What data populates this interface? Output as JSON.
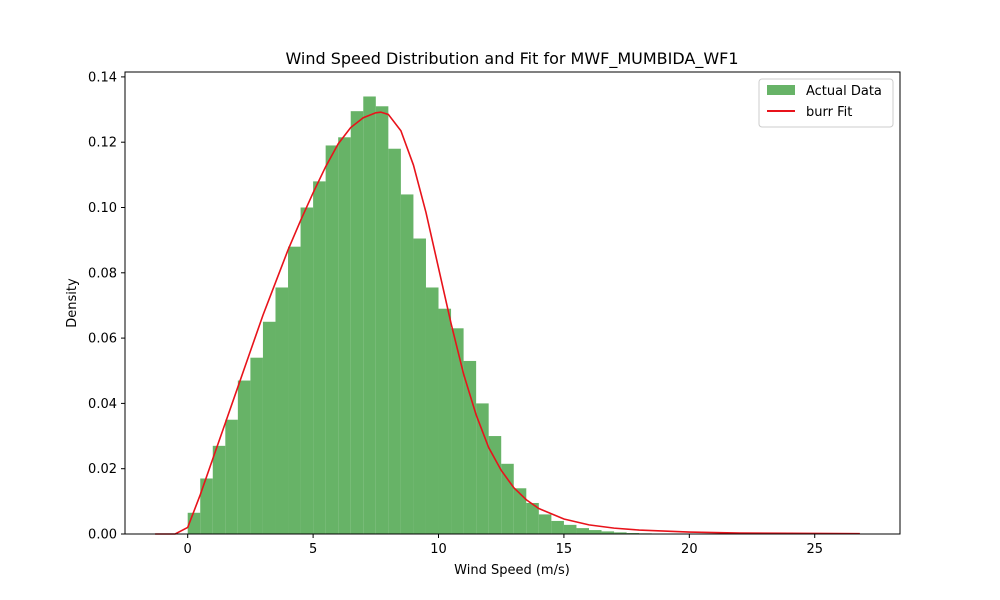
{
  "chart_data": {
    "type": "histogram",
    "title": "Wind Speed Distribution and Fit for MWF_MUMBIDA_WF1",
    "xlabel": "Wind Speed (m/s)",
    "ylabel": "Density",
    "xlim": [
      -2.5,
      28.4
    ],
    "ylim": [
      0,
      0.1415
    ],
    "xticks": [
      0,
      5,
      10,
      15,
      20,
      25
    ],
    "yticks": [
      0.0,
      0.02,
      0.04,
      0.06,
      0.08,
      0.1,
      0.12,
      0.14
    ],
    "xtick_labels": [
      "0",
      "5",
      "10",
      "15",
      "20",
      "25"
    ],
    "ytick_labels": [
      "0.00",
      "0.02",
      "0.04",
      "0.06",
      "0.08",
      "0.10",
      "0.12",
      "0.14"
    ],
    "legend_position": "top-right",
    "grid": false,
    "histogram": {
      "name": "Actual Data",
      "color": "#4ca64c",
      "opacity": 0.85,
      "bin_edges": [
        0.0,
        0.5,
        1.0,
        1.5,
        2.0,
        2.5,
        3.0,
        3.5,
        4.0,
        4.5,
        5.0,
        5.5,
        6.0,
        6.5,
        7.0,
        7.5,
        8.0,
        8.5,
        9.0,
        9.5,
        10.0,
        10.5,
        11.0,
        11.5,
        12.0,
        12.5,
        13.0,
        13.5,
        14.0,
        14.5,
        15.0,
        15.5,
        16.0,
        16.5,
        17.0,
        17.5,
        18.0,
        18.5,
        19.0,
        19.5,
        20.0
      ],
      "densities": [
        0.0065,
        0.017,
        0.027,
        0.035,
        0.047,
        0.054,
        0.065,
        0.0755,
        0.088,
        0.1,
        0.108,
        0.119,
        0.1215,
        0.1295,
        0.134,
        0.131,
        0.118,
        0.104,
        0.0905,
        0.0755,
        0.069,
        0.063,
        0.053,
        0.04,
        0.03,
        0.0215,
        0.014,
        0.0095,
        0.006,
        0.004,
        0.0028,
        0.0018,
        0.0012,
        0.0008,
        0.0005,
        0.0003,
        0.0002,
        0.00015,
        0.0001,
        5e-05
      ]
    },
    "fit_curve": {
      "name": "burr Fit",
      "color": "#e8131b",
      "x": [
        -1.3,
        -0.5,
        0.0,
        0.5,
        1.0,
        1.5,
        2.0,
        2.5,
        3.0,
        3.5,
        4.0,
        4.5,
        5.0,
        5.5,
        6.0,
        6.5,
        7.0,
        7.5,
        7.7,
        8.0,
        8.5,
        9.0,
        9.5,
        10.0,
        10.5,
        11.0,
        11.5,
        12.0,
        12.5,
        13.0,
        13.5,
        14.0,
        15.0,
        16.0,
        17.0,
        18.0,
        20.0,
        22.0,
        24.0,
        26.8
      ],
      "y": [
        0.0,
        0.0,
        0.002,
        0.012,
        0.023,
        0.034,
        0.045,
        0.056,
        0.067,
        0.077,
        0.087,
        0.096,
        0.1045,
        0.1125,
        0.1195,
        0.1245,
        0.1275,
        0.129,
        0.1292,
        0.1285,
        0.1235,
        0.113,
        0.0985,
        0.0815,
        0.0645,
        0.049,
        0.0365,
        0.0265,
        0.0195,
        0.0142,
        0.0105,
        0.0078,
        0.0046,
        0.0028,
        0.0018,
        0.0012,
        0.0006,
        0.0003,
        0.0002,
        0.0001
      ]
    }
  }
}
